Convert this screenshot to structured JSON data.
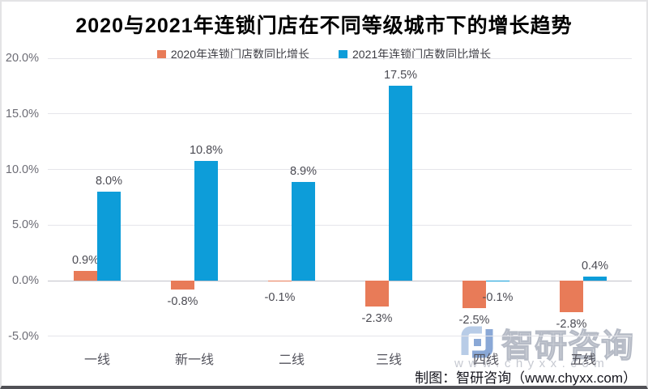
{
  "chart_data": {
    "type": "bar",
    "title": "2020与2021年连锁门店在不同等级城市下的增长趋势",
    "categories": [
      "一线",
      "新一线",
      "二线",
      "三线",
      "四线",
      "五线"
    ],
    "series": [
      {
        "name": "2020年连锁门店数同比增长",
        "color": "#E87B58",
        "values": [
          0.9,
          -0.8,
          -0.1,
          -2.3,
          -2.5,
          -2.8
        ],
        "labels": [
          "0.9%",
          "-0.8%",
          "-0.1%",
          "-2.3%",
          "-2.5%",
          "-2.8%"
        ]
      },
      {
        "name": "2021年连锁门店数同比增长",
        "color": "#0D9DD9",
        "values": [
          8.0,
          10.8,
          8.9,
          17.5,
          -0.1,
          0.4
        ],
        "labels": [
          "8.0%",
          "10.8%",
          "8.9%",
          "17.5%",
          "-0.1%",
          "0.4%"
        ]
      }
    ],
    "y_axis": {
      "min": -5,
      "max": 20,
      "step": 5,
      "tick_labels": [
        "20.0%",
        "15.0%",
        "10.0%",
        "5.0%",
        "0.0%",
        "-5.0%"
      ]
    },
    "ylim": [
      -5,
      20
    ],
    "grid": true,
    "legend_position": "top",
    "value_label_format": "percent"
  },
  "footer": {
    "credit": "制图：智研咨询（www.chyxx.com）"
  },
  "watermark": {
    "brand": "智研咨询",
    "url": "www.chyxx.com"
  }
}
